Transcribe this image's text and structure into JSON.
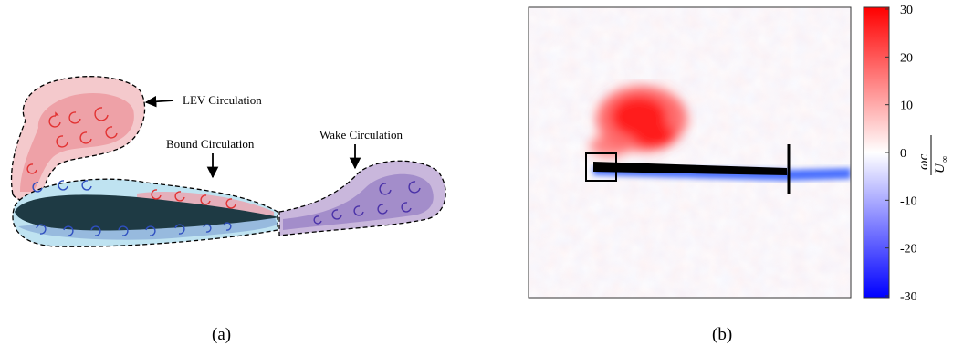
{
  "panel_a": {
    "caption": "(a)",
    "labels": {
      "lev": "LEV Circulation",
      "bound": "Bound Circulation",
      "wake": "Wake Circulation"
    },
    "colors": {
      "lev_fill": "#f4c9cc",
      "lev_inner": "#ec9aa0",
      "bound_fill": "#bfe3f1",
      "bound_lower": "#8fb3da",
      "upper_red": "#eaa6b2",
      "airfoil": "#1e3a44",
      "wake_fill": "#c9b7dc",
      "wake_inner": "#9c86c7",
      "red_arrow": "#e23232",
      "blue_arrow": "#2f4fc0",
      "purple_arrow": "#4a32a8"
    }
  },
  "panel_b": {
    "caption": "(b)",
    "colorbar": {
      "ticks": [
        "30",
        "20",
        "10",
        "0",
        "-10",
        "-20",
        "-30"
      ],
      "top_color": "#ff0000",
      "mid_color": "#ffffff",
      "bottom_color": "#0000ff"
    }
  }
}
